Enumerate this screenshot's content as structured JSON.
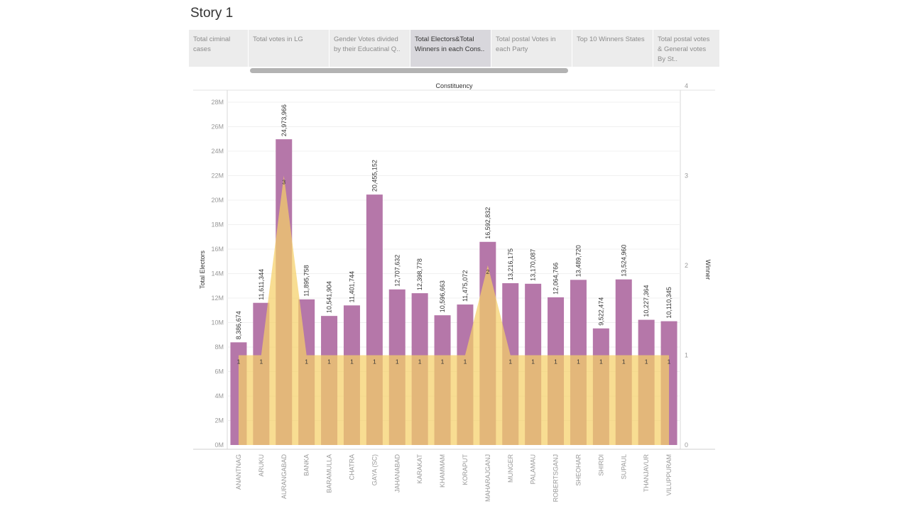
{
  "story": {
    "title": "Story 1"
  },
  "nav": {
    "items": [
      {
        "label": "Total ciminal cases",
        "active": false
      },
      {
        "label": "Total votes in LG",
        "active": false
      },
      {
        "label": "Gender Votes divided by their  Educatinal Q..",
        "active": false
      },
      {
        "label": "Total Electors&Total Winners in  each Cons..",
        "active": true
      },
      {
        "label": "Total postal Votes in each Party",
        "active": false
      },
      {
        "label": "Top 10 Winners States",
        "active": false
      },
      {
        "label": "Total postal votes & General votes By St..",
        "active": false
      }
    ]
  },
  "chart_data": {
    "type": "bar",
    "title": "Constituency",
    "xlabel": "",
    "ylabel": "Total Electors",
    "y2label": "Winner",
    "ylim": [
      0,
      29000000
    ],
    "y2lim": [
      0,
      4
    ],
    "yticks": [
      "0M",
      "2M",
      "4M",
      "6M",
      "8M",
      "10M",
      "12M",
      "14M",
      "16M",
      "18M",
      "20M",
      "22M",
      "24M",
      "26M",
      "28M"
    ],
    "y2ticks": [
      "0",
      "1",
      "2",
      "3",
      "4"
    ],
    "categories": [
      "ANANTNAG",
      "ARUKU",
      "AURANGABAD",
      "BANKA",
      "BARAMULLA",
      "CHATRA",
      "GAYA (SC)",
      "JAHANABAD",
      "KARAKAT",
      "KHAMMAM",
      "KORAPUT",
      "MAHARAJGANJ",
      "MUNGER",
      "PALAMAU",
      "ROBERTSGANJ",
      "SHEOHAR",
      "SHIRDI",
      "SUPAUL",
      "THANJAVUR",
      "VILUPPURAM"
    ],
    "series": [
      {
        "name": "Total Electors",
        "type": "bar",
        "color": "#b577a9",
        "values": [
          8386674,
          11611344,
          24973966,
          11895758,
          10541904,
          11401744,
          20455152,
          12707632,
          12398778,
          10596663,
          11475072,
          16592832,
          13216175,
          13170087,
          12064766,
          13489720,
          9522474,
          13524960,
          10227364,
          10110345
        ],
        "labels": [
          "8,386,674",
          "11,611,344",
          "24,973,966",
          "11,895,758",
          "10,541,904",
          "11,401,744",
          "20,455,152",
          "12,707,632",
          "12,398,778",
          "10,596,663",
          "11,475,072",
          "16,592,832",
          "13,216,175",
          "13,170,087",
          "12,064,766",
          "13,489,720",
          "9,522,474",
          "13,524,960",
          "10,227,364",
          "10,110,345"
        ]
      },
      {
        "name": "Winner",
        "type": "area",
        "color": "#f5d068",
        "values": [
          1,
          1,
          3,
          1,
          1,
          1,
          1,
          1,
          1,
          1,
          1,
          2,
          1,
          1,
          1,
          1,
          1,
          1,
          1,
          1
        ]
      }
    ],
    "grid": true,
    "legend": "none"
  }
}
